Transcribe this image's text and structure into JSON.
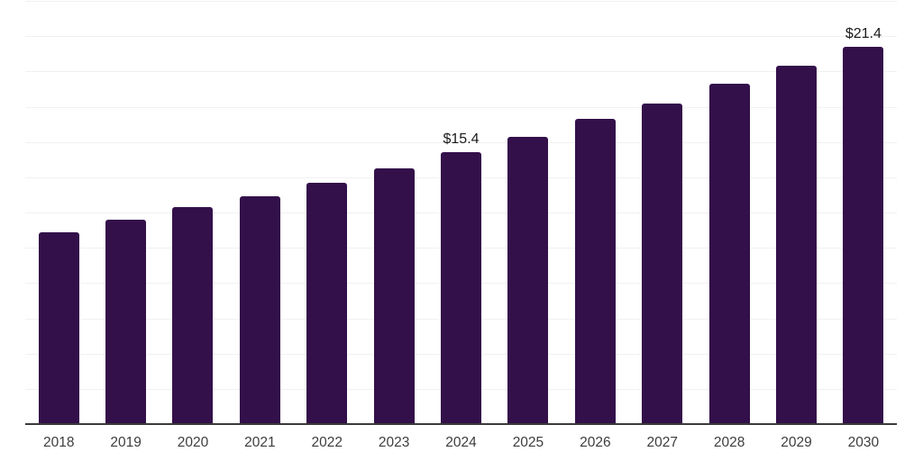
{
  "chart_data": {
    "type": "bar",
    "categories": [
      "2018",
      "2019",
      "2020",
      "2021",
      "2022",
      "2023",
      "2024",
      "2025",
      "2026",
      "2027",
      "2028",
      "2029",
      "2030"
    ],
    "values": [
      10.9,
      11.6,
      12.3,
      12.9,
      13.7,
      14.5,
      15.4,
      16.3,
      17.3,
      18.2,
      19.3,
      20.3,
      21.4
    ],
    "data_labels": {
      "2024": "$15.4",
      "2030": "$21.4"
    },
    "title": "",
    "xlabel": "",
    "ylabel": "",
    "ylim": [
      0,
      24
    ],
    "gridline_step": 2,
    "grid": true,
    "legend": false,
    "colors": {
      "bar": "#33104a",
      "gridline": "#f1f1f1",
      "axis_line": "#3a3a3a",
      "data_label_text": "#1a1a1a",
      "tick_text": "#3d3d3d",
      "background": "#ffffff"
    }
  }
}
